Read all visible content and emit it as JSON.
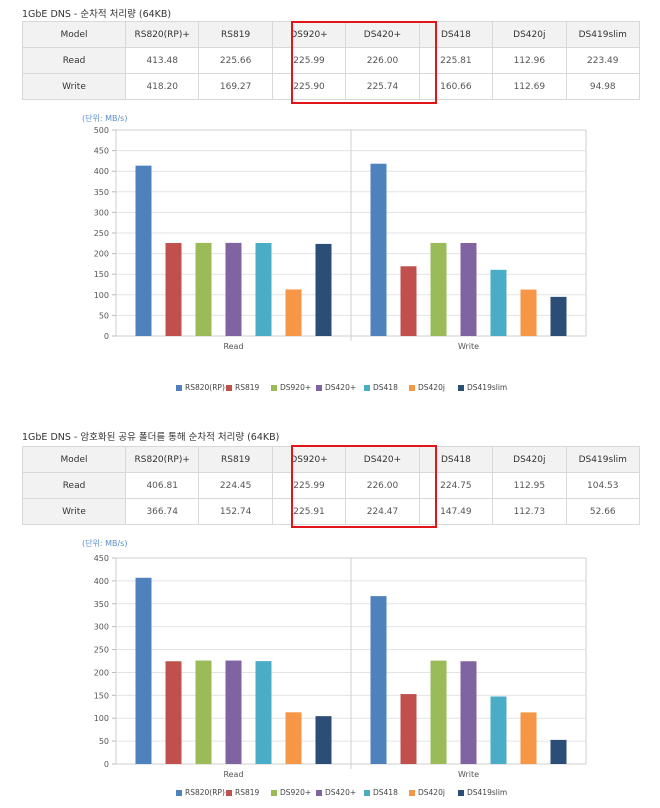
{
  "sections": [
    {
      "title": "1GbE DNS - 순차적 처리량 (64KB)",
      "table": {
        "columns": [
          "Model",
          "RS820(RP)+",
          "RS819",
          "DS920+",
          "DS420+",
          "DS418",
          "DS420j",
          "DS419slim"
        ],
        "rows": [
          {
            "label": "Read",
            "values": [
              "413.48",
              "225.66",
              "225.99",
              "226.00",
              "225.81",
              "112.96",
              "223.49"
            ]
          },
          {
            "label": "Write",
            "values": [
              "418.20",
              "169.27",
              "225.90",
              "225.74",
              "160.66",
              "112.69",
              "94.98"
            ]
          }
        ]
      },
      "unit_label": "(단위: MB/s)"
    },
    {
      "title": "1GbE DNS - 암호화된 공유 폴더를 통해 순차적 처리량 (64KB)",
      "table": {
        "columns": [
          "Model",
          "RS820(RP)+",
          "RS819",
          "DS920+",
          "DS420+",
          "DS418",
          "DS420j",
          "DS419slim"
        ],
        "rows": [
          {
            "label": "Read",
            "values": [
              "406.81",
              "224.45",
              "225.99",
              "226.00",
              "224.75",
              "112.95",
              "104.53"
            ]
          },
          {
            "label": "Write",
            "values": [
              "366.74",
              "152.74",
              "225.91",
              "224.47",
              "147.49",
              "112.73",
              "52.66"
            ]
          }
        ]
      },
      "unit_label": "(단위: MB/s)"
    }
  ],
  "chart_data": [
    {
      "type": "bar",
      "title": "",
      "categories": [
        "Read",
        "Write"
      ],
      "ylim": [
        0,
        500
      ],
      "yticks": [
        0,
        50,
        100,
        150,
        200,
        250,
        300,
        350,
        400,
        450,
        500
      ],
      "grid": true,
      "legend_position": "bottom",
      "series": [
        {
          "name": "RS820(RP)+",
          "color": "#4f81bd",
          "values": [
            413.48,
            418.2
          ]
        },
        {
          "name": "RS819",
          "color": "#c0504d",
          "values": [
            225.66,
            169.27
          ]
        },
        {
          "name": "DS920+",
          "color": "#9bbb59",
          "values": [
            225.99,
            225.9
          ]
        },
        {
          "name": "DS420+",
          "color": "#8064a2",
          "values": [
            226.0,
            225.74
          ]
        },
        {
          "name": "DS418",
          "color": "#4bacc6",
          "values": [
            225.81,
            160.66
          ]
        },
        {
          "name": "DS420j",
          "color": "#f79646",
          "values": [
            112.96,
            112.69
          ]
        },
        {
          "name": "DS419slim",
          "color": "#2c4d75",
          "values": [
            223.49,
            94.98
          ]
        }
      ]
    },
    {
      "type": "bar",
      "title": "",
      "categories": [
        "Read",
        "Write"
      ],
      "ylim": [
        0,
        450
      ],
      "yticks": [
        0,
        50,
        100,
        150,
        200,
        250,
        300,
        350,
        400,
        450
      ],
      "grid": true,
      "legend_position": "bottom",
      "series": [
        {
          "name": "RS820(RP)+",
          "color": "#4f81bd",
          "values": [
            406.81,
            366.74
          ]
        },
        {
          "name": "RS819",
          "color": "#c0504d",
          "values": [
            224.45,
            152.74
          ]
        },
        {
          "name": "DS920+",
          "color": "#9bbb59",
          "values": [
            225.99,
            225.91
          ]
        },
        {
          "name": "DS420+",
          "color": "#8064a2",
          "values": [
            226.0,
            224.47
          ]
        },
        {
          "name": "DS418",
          "color": "#4bacc6",
          "values": [
            224.75,
            147.49
          ]
        },
        {
          "name": "DS420j",
          "color": "#f79646",
          "values": [
            112.95,
            112.73
          ]
        },
        {
          "name": "DS419slim",
          "color": "#2c4d75",
          "values": [
            104.53,
            52.66
          ]
        }
      ]
    }
  ],
  "colors": {
    "highlight_box": "#e0161b",
    "unit_text": "#5a8fc8",
    "table_header_bg": "#f2f2f2"
  }
}
